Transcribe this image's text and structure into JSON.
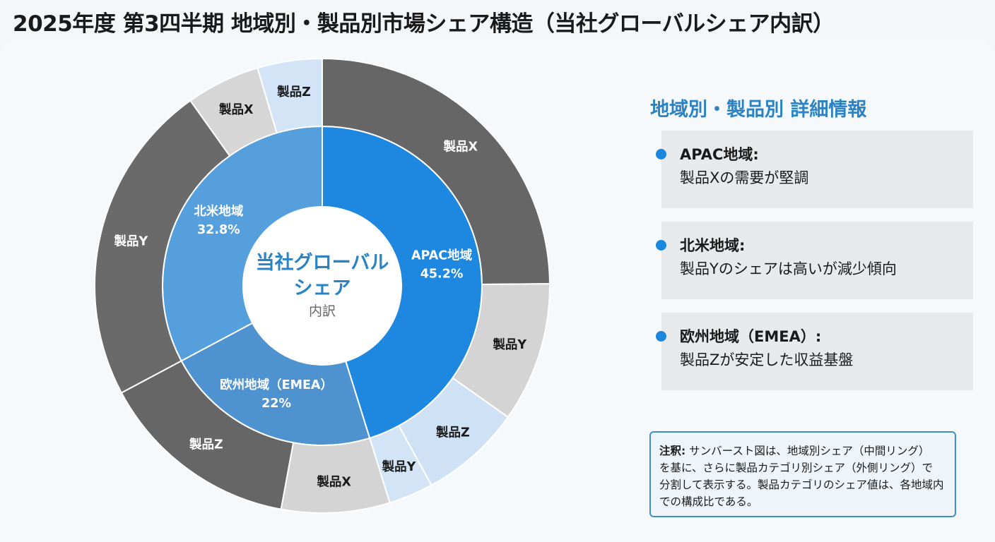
{
  "title": "2025年度 第3四半期 地域別・製品別市場シェア構造（当社グローバルシェア内訳）",
  "chart_data": {
    "type": "sunburst",
    "center": {
      "title_line1": "当社グローバル",
      "title_line2": "シェア",
      "subtitle": "内訳"
    },
    "regions": [
      {
        "name": "APAC地域",
        "value": 45.2,
        "value_label": "45.2%",
        "color": "#1e88e0",
        "products": [
          {
            "name": "製品X",
            "share": 55,
            "color": "#666666"
          },
          {
            "name": "製品Y",
            "share": 22,
            "color": "#d4d4d4"
          },
          {
            "name": "製品Z",
            "share": 16,
            "color": "#cfe1f4"
          },
          {
            "name": "製品Y",
            "share": 7,
            "color": "#d2e4f6"
          }
        ]
      },
      {
        "name": "欧州地域（EMEA）",
        "value": 22,
        "value_label": "22%",
        "color": "#4e92d0",
        "products": [
          {
            "name": "製品X",
            "share": 35,
            "color": "#d4d4d4"
          },
          {
            "name": "製品Z",
            "share": 65,
            "color": "#666666"
          }
        ]
      },
      {
        "name": "北米地域",
        "value": 32.8,
        "value_label": "32.8%",
        "color": "#569fdd",
        "products": [
          {
            "name": "製品Y",
            "share": 70,
            "color": "#6a6a6a"
          },
          {
            "name": "製品X",
            "share": 16,
            "color": "#d6d6d6"
          },
          {
            "name": "製品Z",
            "share": 14,
            "color": "#d2e4f6"
          }
        ]
      }
    ]
  },
  "side": {
    "heading": "地域別・製品別 詳細情報",
    "cards": [
      {
        "title": "APAC地域:",
        "desc": "製品Xの需要が堅調"
      },
      {
        "title": "北米地域:",
        "desc": "製品Yのシェアは高いが減少傾向"
      },
      {
        "title": "欧州地域（EMEA）:",
        "desc": "製品Zが安定した収益基盤"
      }
    ]
  },
  "note": {
    "label": "注釈:",
    "line1": "サンバースト図は、地域別シェア（中間リング）",
    "line2": "を基に、さらに製品カテゴリ別シェア（外側リング）で",
    "line3": "分割して表示する。製品カテゴリのシェア値は、各地域内",
    "line4": "での構成比である。"
  }
}
